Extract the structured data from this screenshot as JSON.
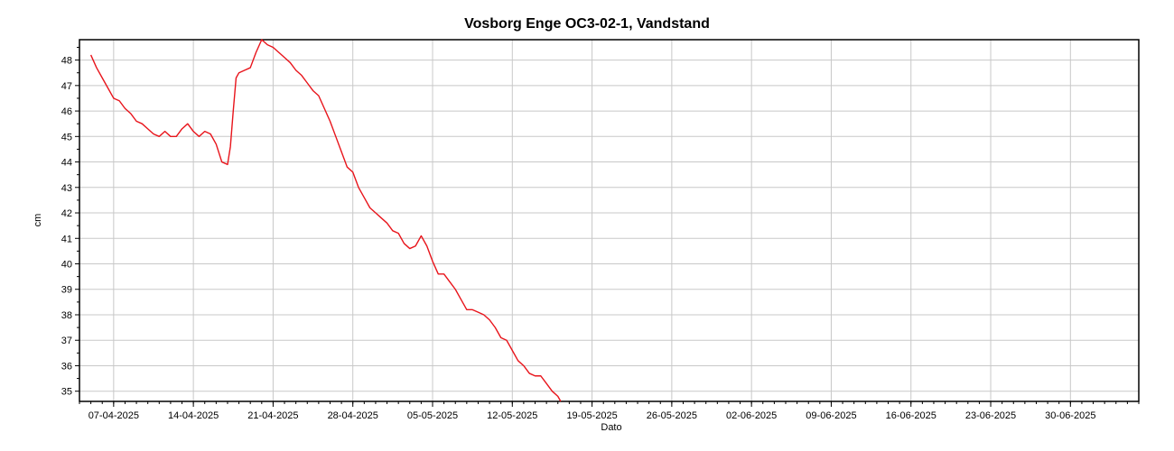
{
  "chart_data": {
    "type": "line",
    "title": "Vosborg Enge OC3-02-1, Vandstand",
    "xlabel": "Dato",
    "ylabel": "cm",
    "xlim": [
      "2025-04-04",
      "2025-07-06"
    ],
    "ylim": [
      34.6,
      48.8
    ],
    "grid": true,
    "x_ticks": [
      "07-04-2025",
      "14-04-2025",
      "21-04-2025",
      "28-04-2025",
      "05-05-2025",
      "12-05-2025",
      "19-05-2025",
      "26-05-2025",
      "02-06-2025",
      "09-06-2025",
      "16-06-2025",
      "23-06-2025",
      "30-06-2025"
    ],
    "y_ticks": [
      35,
      36,
      37,
      38,
      39,
      40,
      41,
      42,
      43,
      44,
      45,
      46,
      47,
      48
    ],
    "series": [
      {
        "color": "#e8141b",
        "x": [
          "2025-04-05 00:00",
          "2025-04-05 12:00",
          "2025-04-06 00:00",
          "2025-04-06 12:00",
          "2025-04-07 00:00",
          "2025-04-07 12:00",
          "2025-04-08 00:00",
          "2025-04-08 12:00",
          "2025-04-09 00:00",
          "2025-04-09 12:00",
          "2025-04-10 00:00",
          "2025-04-10 12:00",
          "2025-04-11 00:00",
          "2025-04-11 12:00",
          "2025-04-12 00:00",
          "2025-04-12 12:00",
          "2025-04-13 00:00",
          "2025-04-13 12:00",
          "2025-04-14 00:00",
          "2025-04-14 12:00",
          "2025-04-15 00:00",
          "2025-04-15 12:00",
          "2025-04-16 00:00",
          "2025-04-16 12:00",
          "2025-04-17 00:00",
          "2025-04-17 06:00",
          "2025-04-17 12:00",
          "2025-04-17 18:00",
          "2025-04-18 00:00",
          "2025-04-18 12:00",
          "2025-04-19 00:00",
          "2025-04-19 12:00",
          "2025-04-20 00:00",
          "2025-04-20 12:00",
          "2025-04-21 00:00",
          "2025-04-21 12:00",
          "2025-04-22 00:00",
          "2025-04-22 12:00",
          "2025-04-23 00:00",
          "2025-04-23 12:00",
          "2025-04-24 00:00",
          "2025-04-24 12:00",
          "2025-04-25 00:00",
          "2025-04-25 12:00",
          "2025-04-26 00:00",
          "2025-04-26 12:00",
          "2025-04-27 00:00",
          "2025-04-27 12:00",
          "2025-04-28 00:00",
          "2025-04-28 12:00",
          "2025-04-29 00:00",
          "2025-04-29 12:00",
          "2025-04-30 00:00",
          "2025-04-30 12:00",
          "2025-05-01 00:00",
          "2025-05-01 12:00",
          "2025-05-02 00:00",
          "2025-05-02 12:00",
          "2025-05-03 00:00",
          "2025-05-03 12:00",
          "2025-05-04 00:00",
          "2025-05-04 12:00",
          "2025-05-05 00:00",
          "2025-05-05 12:00",
          "2025-05-06 00:00",
          "2025-05-06 12:00",
          "2025-05-07 00:00",
          "2025-05-07 12:00",
          "2025-05-08 00:00",
          "2025-05-08 12:00",
          "2025-05-09 00:00",
          "2025-05-09 12:00",
          "2025-05-10 00:00",
          "2025-05-10 12:00",
          "2025-05-11 00:00",
          "2025-05-11 12:00",
          "2025-05-12 00:00",
          "2025-05-12 12:00",
          "2025-05-13 00:00",
          "2025-05-13 12:00",
          "2025-05-14 00:00",
          "2025-05-14 12:00",
          "2025-05-15 00:00",
          "2025-05-15 12:00",
          "2025-05-16 00:00",
          "2025-05-16 06:00"
        ],
        "y": [
          48.2,
          47.7,
          47.3,
          46.9,
          46.5,
          46.4,
          46.1,
          45.9,
          45.6,
          45.5,
          45.3,
          45.1,
          45.0,
          45.2,
          45.0,
          45.0,
          45.3,
          45.5,
          45.2,
          45.0,
          45.2,
          45.1,
          44.7,
          44.0,
          43.9,
          44.6,
          46.0,
          47.3,
          47.5,
          47.6,
          47.7,
          48.3,
          48.8,
          48.6,
          48.5,
          48.3,
          48.1,
          47.9,
          47.6,
          47.4,
          47.1,
          46.8,
          46.6,
          46.1,
          45.6,
          45.0,
          44.4,
          43.8,
          43.6,
          43.0,
          42.6,
          42.2,
          42.0,
          41.8,
          41.6,
          41.3,
          41.2,
          40.8,
          40.6,
          40.7,
          41.1,
          40.7,
          40.1,
          39.6,
          39.6,
          39.3,
          39.0,
          38.6,
          38.2,
          38.2,
          38.1,
          38.0,
          37.8,
          37.5,
          37.1,
          37.0,
          36.6,
          36.2,
          36.0,
          35.7,
          35.6,
          35.6,
          35.3,
          35.0,
          34.8,
          34.6
        ]
      }
    ]
  }
}
